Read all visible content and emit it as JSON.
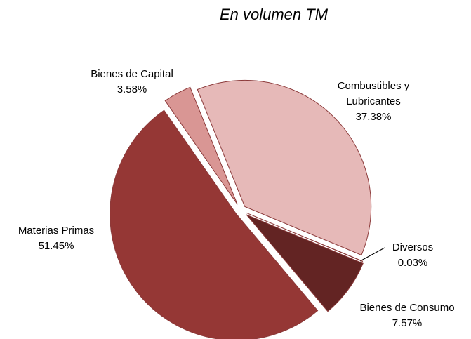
{
  "chart_data": {
    "type": "pie",
    "title": "En volumen TM",
    "categories": [
      "Combustibles y Lubricantes",
      "Diversos",
      "Bienes de Consumo",
      "Materias Primas",
      "Bienes de Capital"
    ],
    "values": [
      37.38,
      0.03,
      7.57,
      51.45,
      3.58
    ],
    "value_labels": [
      "37.38%",
      "0.03%",
      "7.57%",
      "51.45%",
      "3.58%"
    ],
    "colors": [
      "#e6b9b8",
      "#7b2c2c",
      "#632423",
      "#953735",
      "#d99694"
    ]
  }
}
